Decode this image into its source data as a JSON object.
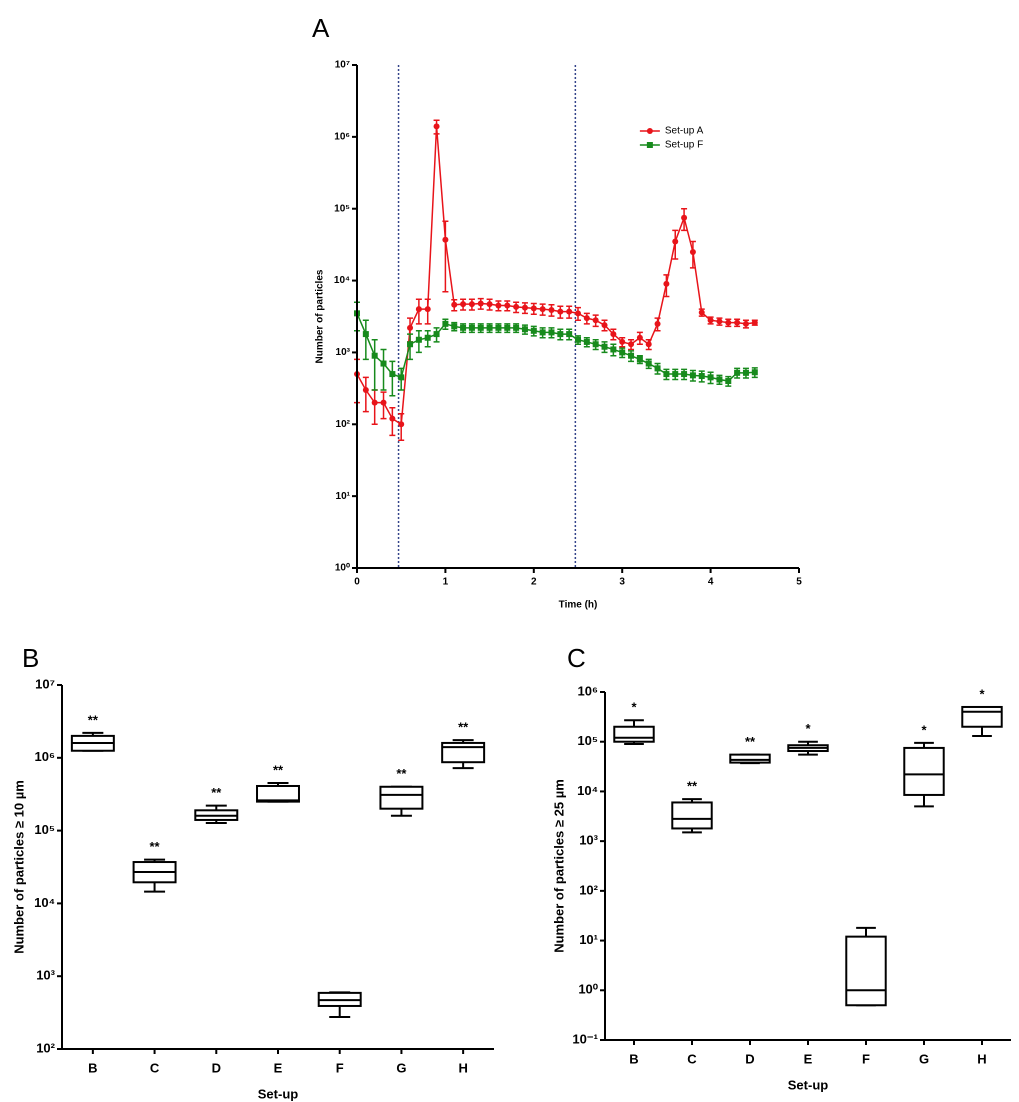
{
  "chart_data": [
    {
      "type": "line",
      "panel": "A",
      "xlabel": "Time (h)",
      "ylabel": "Number of particles",
      "x": [
        0,
        0.1,
        0.2,
        0.3,
        0.4,
        0.5,
        0.6,
        0.7,
        0.8,
        0.9,
        1,
        1.1,
        1.2,
        1.3,
        1.4,
        1.5,
        1.6,
        1.7,
        1.8,
        1.9,
        2,
        2.1,
        2.2,
        2.3,
        2.4,
        2.5,
        2.6,
        2.7,
        2.8,
        2.9,
        3,
        3.1,
        3.2,
        3.3,
        3.4,
        3.5,
        3.6,
        3.7,
        3.8,
        3.9,
        4,
        4.1,
        4.2,
        4.3,
        4.4,
        4.5
      ],
      "series": [
        {
          "name": "Set-up A",
          "color": "#e8141a",
          "marker": "circle",
          "values": [
            500,
            300,
            200,
            200,
            120,
            100,
            2200,
            4000,
            4000,
            1400000,
            37000,
            4600,
            4700,
            4700,
            4800,
            4700,
            4500,
            4500,
            4300,
            4200,
            4100,
            4000,
            3900,
            3700,
            3700,
            3500,
            3000,
            2800,
            2400,
            1800,
            1400,
            1300,
            1600,
            1300,
            2500,
            9000,
            35000,
            75000,
            25000,
            3600,
            2800,
            2700,
            2600,
            2600,
            2500,
            2600
          ],
          "errors": [
            300,
            150,
            100,
            80,
            50,
            40,
            800,
            1500,
            1500,
            300000,
            30000,
            800,
            800,
            800,
            800,
            800,
            700,
            700,
            700,
            700,
            700,
            700,
            700,
            700,
            700,
            700,
            500,
            500,
            400,
            300,
            200,
            200,
            300,
            200,
            500,
            3000,
            15000,
            25000,
            10000,
            400,
            300,
            300,
            300,
            300,
            300,
            200
          ]
        },
        {
          "name": "Set-up F",
          "color": "#178a1c",
          "marker": "square",
          "values": [
            3500,
            1800,
            900,
            700,
            500,
            450,
            1300,
            1500,
            1600,
            1800,
            2500,
            2300,
            2200,
            2200,
            2200,
            2200,
            2200,
            2200,
            2200,
            2100,
            2000,
            1900,
            1900,
            1800,
            1800,
            1500,
            1400,
            1300,
            1200,
            1100,
            1000,
            900,
            800,
            700,
            600,
            500,
            500,
            500,
            480,
            470,
            450,
            420,
            400,
            520,
            520,
            530
          ],
          "errors": [
            1500,
            1000,
            600,
            400,
            250,
            150,
            500,
            500,
            400,
            400,
            400,
            300,
            300,
            300,
            300,
            300,
            300,
            300,
            300,
            300,
            300,
            300,
            300,
            300,
            300,
            200,
            200,
            200,
            200,
            200,
            150,
            150,
            100,
            100,
            100,
            80,
            80,
            80,
            80,
            80,
            80,
            60,
            60,
            80,
            80,
            80
          ]
        }
      ],
      "xlim": [
        0,
        5
      ],
      "ylim": [
        1,
        10000000
      ],
      "log_y": true,
      "xticks": [
        0,
        1,
        2,
        3,
        4,
        5
      ],
      "yticks": [
        {
          "value": 1,
          "label": "10⁰"
        },
        {
          "value": 10,
          "label": "10¹"
        },
        {
          "value": 100,
          "label": "10²"
        },
        {
          "value": 1000,
          "label": "10³"
        },
        {
          "value": 10000,
          "label": "10⁴"
        },
        {
          "value": 100000,
          "label": "10⁵"
        },
        {
          "value": 1000000,
          "label": "10⁶"
        },
        {
          "value": 10000000,
          "label": "10⁷"
        }
      ],
      "legend": "upper right",
      "vlines": [
        0.47,
        2.47
      ],
      "vline_color": "#34448a"
    },
    {
      "type": "box",
      "panel": "B",
      "xlabel": "Set-up",
      "ylabel": "Number of particles ≥ 10 µm",
      "categories": [
        "B",
        "C",
        "D",
        "E",
        "F",
        "G",
        "H"
      ],
      "min": [
        1250000,
        14500,
        127000,
        250000,
        275,
        160000,
        720000
      ],
      "q1": [
        1250000,
        19500,
        140000,
        250000,
        390,
        200000,
        870000
      ],
      "median": [
        1600000,
        27000,
        160000,
        260000,
        470,
        310000,
        1400000
      ],
      "q3": [
        2000000,
        37000,
        190000,
        410000,
        590,
        400000,
        1600000
      ],
      "max": [
        2200000,
        40000,
        220000,
        450000,
        600,
        400000,
        1750000
      ],
      "annotations": [
        "**",
        "**",
        "**",
        "**",
        null,
        "**",
        "**"
      ],
      "ylim": [
        100,
        10000000
      ],
      "log_y": true,
      "color": "#000000",
      "yticks": [
        {
          "value": 100,
          "label": "10²"
        },
        {
          "value": 1000,
          "label": "10³"
        },
        {
          "value": 10000,
          "label": "10⁴"
        },
        {
          "value": 100000,
          "label": "10⁵"
        },
        {
          "value": 1000000,
          "label": "10⁶"
        },
        {
          "value": 10000000,
          "label": "10⁷"
        }
      ]
    },
    {
      "type": "box",
      "panel": "C",
      "xlabel": "Set-up",
      "ylabel": "Number of particles ≥ 25 µm",
      "categories": [
        "B",
        "C",
        "D",
        "E",
        "F",
        "G",
        "H"
      ],
      "min": [
        90000,
        1500,
        37000,
        55000,
        0.5,
        5000,
        130000
      ],
      "q1": [
        100000,
        1800,
        38000,
        65000,
        0.5,
        8500,
        200000
      ],
      "median": [
        120000,
        2800,
        43000,
        75000,
        1,
        22000,
        400000
      ],
      "q3": [
        200000,
        6000,
        55000,
        85000,
        12,
        75000,
        500000
      ],
      "max": [
        270000,
        7000,
        55000,
        100000,
        18,
        95000,
        500000
      ],
      "annotations": [
        "*",
        "**",
        "**",
        "*",
        null,
        "*",
        "*"
      ],
      "ylim": [
        0.1,
        1000000
      ],
      "log_y": true,
      "color": "#000000",
      "yticks": [
        {
          "value": 0.1,
          "label": "10⁻¹"
        },
        {
          "value": 1,
          "label": "10⁰"
        },
        {
          "value": 10,
          "label": "10¹"
        },
        {
          "value": 100,
          "label": "10²"
        },
        {
          "value": 1000,
          "label": "10³"
        },
        {
          "value": 10000,
          "label": "10⁴"
        },
        {
          "value": 100000,
          "label": "10⁵"
        },
        {
          "value": 1000000,
          "label": "10⁶"
        }
      ]
    }
  ]
}
